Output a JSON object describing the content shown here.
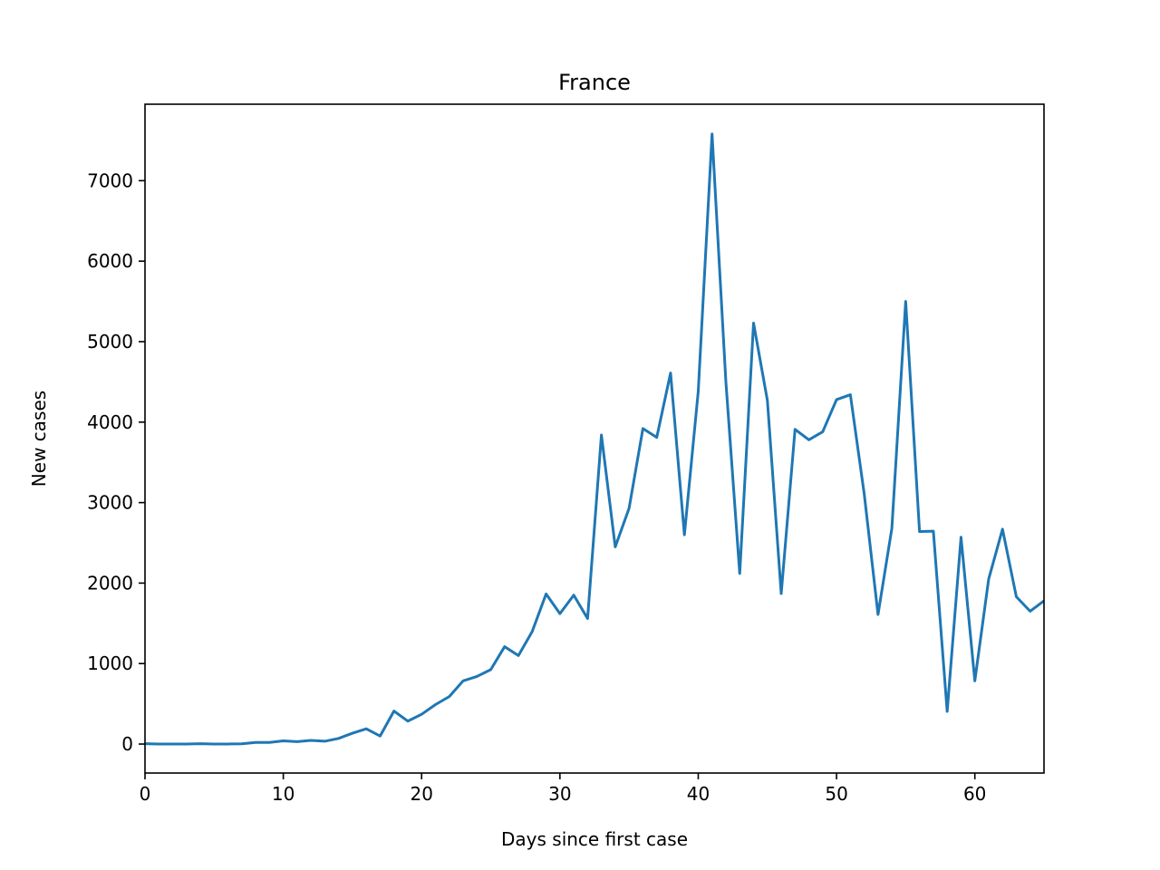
{
  "chart_data": {
    "type": "line",
    "title": "France",
    "xlabel": "Days since first case",
    "ylabel": "New cases",
    "xlim": [
      0,
      65
    ],
    "ylim": [
      -360,
      7950
    ],
    "xticks": [
      0,
      10,
      20,
      30,
      40,
      50,
      60
    ],
    "yticks": [
      0,
      1000,
      2000,
      3000,
      4000,
      5000,
      6000,
      7000
    ],
    "grid": false,
    "color": "#1f77b4",
    "series": [
      {
        "x": [
          0,
          1,
          2,
          3,
          4,
          5,
          6,
          7,
          8,
          9,
          10,
          11,
          12,
          13,
          14,
          15,
          16,
          17,
          18,
          19,
          20,
          21,
          22,
          23,
          24,
          25,
          26,
          27,
          28,
          29,
          30,
          31,
          32,
          33,
          34,
          35,
          36,
          37,
          38,
          39,
          40,
          41,
          42,
          43,
          44,
          45,
          46,
          47,
          48,
          49,
          50,
          51,
          52,
          53,
          54,
          55,
          56,
          57,
          58,
          59,
          60,
          61,
          62,
          63,
          64,
          65
        ],
        "values": [
          5,
          0,
          0,
          0,
          5,
          0,
          1,
          3,
          20,
          20,
          40,
          30,
          45,
          35,
          70,
          135,
          190,
          100,
          410,
          285,
          370,
          490,
          590,
          785,
          840,
          925,
          1210,
          1100,
          1400,
          1865,
          1620,
          1850,
          1560,
          3840,
          2450,
          2930,
          3920,
          3810,
          4610,
          2600,
          4380,
          7580,
          4500,
          2120,
          5230,
          4270,
          1870,
          3910,
          3780,
          3880,
          4280,
          4340,
          3110,
          1610,
          2680,
          5500,
          2640,
          2645,
          405,
          2570,
          785,
          2050,
          2670,
          1830,
          1650,
          1780
        ]
      }
    ]
  }
}
